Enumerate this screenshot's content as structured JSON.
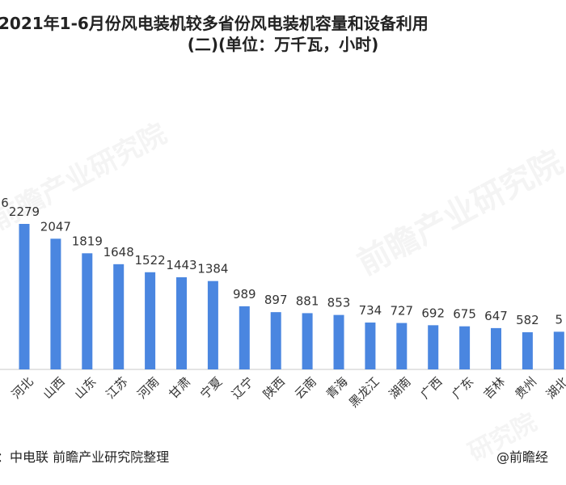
{
  "title_line1": "：2021年1-6月份风电装机较多省份风电装机容量和设备利用",
  "title_line2": "(二)(单位：万千瓦，小时)",
  "footer_source": "：中电联 前瞻产业研究院整理",
  "footer_brand": "@前瞻经",
  "watermarks": [
    "前瞻产业研究院",
    "前瞻产业研究院",
    "研究院"
  ],
  "colors": {
    "bar": "#4a86e0",
    "axis": "#c8c8c8",
    "text": "#333333"
  },
  "chart_data": {
    "type": "bar",
    "categories": [
      "河北",
      "山西",
      "山东",
      "江苏",
      "河南",
      "甘肃",
      "宁夏",
      "辽宁",
      "陕西",
      "云南",
      "青海",
      "黑龙江",
      "湖南",
      "广西",
      "广东",
      "吉林",
      "贵州",
      "湖北"
    ],
    "values": [
      2279,
      2047,
      1819,
      1648,
      1522,
      1443,
      1384,
      989,
      897,
      881,
      853,
      734,
      727,
      692,
      675,
      647,
      582,
      5
    ],
    "value_labels": [
      "2279",
      "2047",
      "1819",
      "1648",
      "1522",
      "1443",
      "1384",
      "989",
      "897",
      "881",
      "853",
      "734",
      "727",
      "692",
      "675",
      "647",
      "582",
      "5"
    ],
    "partial_left_label": "6",
    "ylim": [
      0,
      2400
    ],
    "grid": false
  }
}
